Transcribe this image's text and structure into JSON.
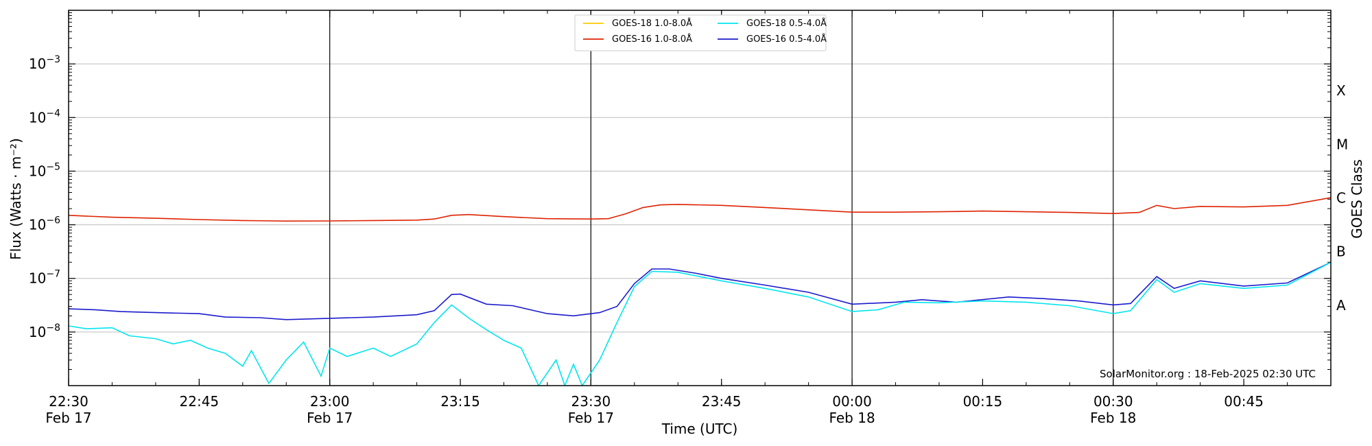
{
  "chart_data": {
    "type": "line",
    "x_unit": "UTC",
    "xlabel": "Time (UTC)",
    "ylabel": "Flux (Watts · m⁻²)",
    "ylabel_right": "GOES Class",
    "yscale": "log",
    "ylim": [
      1e-09,
      0.01
    ],
    "xlim": [
      "2025-02-17 22:30",
      "2025-02-18 00:55"
    ],
    "x_ticks": [
      {
        "time": "2025-02-17 22:30",
        "label1": "22:30",
        "label2": "Feb 17",
        "vline": false
      },
      {
        "time": "2025-02-17 22:45",
        "label1": "22:45",
        "label2": "",
        "vline": false
      },
      {
        "time": "2025-02-17 23:00",
        "label1": "23:00",
        "label2": "Feb 17",
        "vline": true
      },
      {
        "time": "2025-02-17 23:15",
        "label1": "23:15",
        "label2": "",
        "vline": false
      },
      {
        "time": "2025-02-17 23:30",
        "label1": "23:30",
        "label2": "Feb 17",
        "vline": true
      },
      {
        "time": "2025-02-17 23:45",
        "label1": "23:45",
        "label2": "",
        "vline": false
      },
      {
        "time": "2025-02-18 00:00",
        "label1": "00:00",
        "label2": "Feb 18",
        "vline": true
      },
      {
        "time": "2025-02-18 00:15",
        "label1": "00:15",
        "label2": "",
        "vline": false
      },
      {
        "time": "2025-02-18 00:30",
        "label1": "00:30",
        "label2": "Feb 18",
        "vline": true
      },
      {
        "time": "2025-02-18 00:45",
        "label1": "00:45",
        "label2": "",
        "vline": false
      }
    ],
    "y_ticks": [
      {
        "value": 1e-08,
        "base": "10",
        "exp": "−8"
      },
      {
        "value": 1e-07,
        "base": "10",
        "exp": "−7"
      },
      {
        "value": 1e-06,
        "base": "10",
        "exp": "−6"
      },
      {
        "value": 1e-05,
        "base": "10",
        "exp": "−5"
      },
      {
        "value": 0.0001,
        "base": "10",
        "exp": "−4"
      },
      {
        "value": 0.001,
        "base": "10",
        "exp": "−3"
      }
    ],
    "goes_classes": [
      {
        "label": "A",
        "value": 3.16e-08
      },
      {
        "label": "B",
        "value": 3.16e-07
      },
      {
        "label": "C",
        "value": 3.16e-06
      },
      {
        "label": "M",
        "value": 3.16e-05
      },
      {
        "label": "X",
        "value": 0.000316
      }
    ],
    "legend": {
      "placement": "top-center",
      "entries": [
        {
          "name": "GOES-18 1.0-8.0Å",
          "color": "#ffcc00"
        },
        {
          "name": "GOES-16 1.0-8.0Å",
          "color": "#dd2200"
        },
        {
          "name": "GOES-18 0.5-4.0Å",
          "color": "#00e5ee"
        },
        {
          "name": "GOES-16 0.5-4.0Å",
          "color": "#1a1acc"
        }
      ]
    },
    "credit": "SolarMonitor.org : 18-Feb-2025 02:30 UTC",
    "series": [
      {
        "name": "GOES-16 1.0-8.0Å",
        "color": "#dd2200",
        "points": [
          [
            "2025-02-17 22:30",
            1.5e-06
          ],
          [
            "2025-02-17 22:35",
            1.38e-06
          ],
          [
            "2025-02-17 22:40",
            1.32e-06
          ],
          [
            "2025-02-17 22:45",
            1.25e-06
          ],
          [
            "2025-02-17 22:50",
            1.2e-06
          ],
          [
            "2025-02-17 22:55",
            1.17e-06
          ],
          [
            "2025-02-17 23:00",
            1.18e-06
          ],
          [
            "2025-02-17 23:05",
            1.2e-06
          ],
          [
            "2025-02-17 23:10",
            1.22e-06
          ],
          [
            "2025-02-17 23:12",
            1.28e-06
          ],
          [
            "2025-02-17 23:14",
            1.5e-06
          ],
          [
            "2025-02-17 23:16",
            1.55e-06
          ],
          [
            "2025-02-17 23:20",
            1.42e-06
          ],
          [
            "2025-02-17 23:25",
            1.3e-06
          ],
          [
            "2025-02-17 23:30",
            1.28e-06
          ],
          [
            "2025-02-17 23:32",
            1.3e-06
          ],
          [
            "2025-02-17 23:34",
            1.6e-06
          ],
          [
            "2025-02-17 23:36",
            2.1e-06
          ],
          [
            "2025-02-17 23:38",
            2.35e-06
          ],
          [
            "2025-02-17 23:40",
            2.4e-06
          ],
          [
            "2025-02-17 23:45",
            2.3e-06
          ],
          [
            "2025-02-17 23:50",
            2.1e-06
          ],
          [
            "2025-02-17 23:55",
            1.9e-06
          ],
          [
            "2025-02-18 00:00",
            1.72e-06
          ],
          [
            "2025-02-18 00:05",
            1.72e-06
          ],
          [
            "2025-02-18 00:10",
            1.75e-06
          ],
          [
            "2025-02-18 00:15",
            1.8e-06
          ],
          [
            "2025-02-18 00:20",
            1.75e-06
          ],
          [
            "2025-02-18 00:25",
            1.7e-06
          ],
          [
            "2025-02-18 00:30",
            1.62e-06
          ],
          [
            "2025-02-18 00:33",
            1.7e-06
          ],
          [
            "2025-02-18 00:35",
            2.3e-06
          ],
          [
            "2025-02-18 00:37",
            2e-06
          ],
          [
            "2025-02-18 00:40",
            2.2e-06
          ],
          [
            "2025-02-18 00:45",
            2.15e-06
          ],
          [
            "2025-02-18 00:50",
            2.3e-06
          ],
          [
            "2025-02-18 00:55",
            3.2e-06
          ]
        ]
      },
      {
        "name": "GOES-16 0.5-4.0Å",
        "color": "#1a1acc",
        "points": [
          [
            "2025-02-17 22:30",
            2.7e-08
          ],
          [
            "2025-02-17 22:33",
            2.6e-08
          ],
          [
            "2025-02-17 22:36",
            2.4e-08
          ],
          [
            "2025-02-17 22:40",
            2.3e-08
          ],
          [
            "2025-02-17 22:45",
            2.2e-08
          ],
          [
            "2025-02-17 22:48",
            1.9e-08
          ],
          [
            "2025-02-17 22:52",
            1.85e-08
          ],
          [
            "2025-02-17 22:55",
            1.7e-08
          ],
          [
            "2025-02-17 23:00",
            1.8e-08
          ],
          [
            "2025-02-17 23:05",
            1.9e-08
          ],
          [
            "2025-02-17 23:10",
            2.1e-08
          ],
          [
            "2025-02-17 23:12",
            2.5e-08
          ],
          [
            "2025-02-17 23:14",
            5e-08
          ],
          [
            "2025-02-17 23:15",
            5.1e-08
          ],
          [
            "2025-02-17 23:18",
            3.3e-08
          ],
          [
            "2025-02-17 23:21",
            3.1e-08
          ],
          [
            "2025-02-17 23:25",
            2.2e-08
          ],
          [
            "2025-02-17 23:28",
            2e-08
          ],
          [
            "2025-02-17 23:31",
            2.3e-08
          ],
          [
            "2025-02-17 23:33",
            3e-08
          ],
          [
            "2025-02-17 23:35",
            8e-08
          ],
          [
            "2025-02-17 23:37",
            1.5e-07
          ],
          [
            "2025-02-17 23:39",
            1.5e-07
          ],
          [
            "2025-02-17 23:42",
            1.25e-07
          ],
          [
            "2025-02-17 23:45",
            1e-07
          ],
          [
            "2025-02-17 23:50",
            7.5e-08
          ],
          [
            "2025-02-17 23:55",
            5.5e-08
          ],
          [
            "2025-02-18 00:00",
            3.3e-08
          ],
          [
            "2025-02-18 00:05",
            3.6e-08
          ],
          [
            "2025-02-18 00:08",
            4e-08
          ],
          [
            "2025-02-18 00:12",
            3.6e-08
          ],
          [
            "2025-02-18 00:18",
            4.5e-08
          ],
          [
            "2025-02-18 00:22",
            4.2e-08
          ],
          [
            "2025-02-18 00:26",
            3.8e-08
          ],
          [
            "2025-02-18 00:30",
            3.2e-08
          ],
          [
            "2025-02-18 00:32",
            3.4e-08
          ],
          [
            "2025-02-18 00:35",
            1.08e-07
          ],
          [
            "2025-02-18 00:37",
            6.5e-08
          ],
          [
            "2025-02-18 00:40",
            9e-08
          ],
          [
            "2025-02-18 00:45",
            7.2e-08
          ],
          [
            "2025-02-18 00:50",
            8.2e-08
          ],
          [
            "2025-02-18 00:55",
            2e-07
          ]
        ]
      },
      {
        "name": "GOES-18 0.5-4.0Å",
        "color": "#00e5ee",
        "points": [
          [
            "2025-02-17 22:30",
            1.3e-08
          ],
          [
            "2025-02-17 22:32",
            1.15e-08
          ],
          [
            "2025-02-17 22:35",
            1.2e-08
          ],
          [
            "2025-02-17 22:37",
            8.5e-09
          ],
          [
            "2025-02-17 22:40",
            7.5e-09
          ],
          [
            "2025-02-17 22:42",
            6e-09
          ],
          [
            "2025-02-17 22:44",
            7e-09
          ],
          [
            "2025-02-17 22:46",
            5e-09
          ],
          [
            "2025-02-17 22:48",
            4e-09
          ],
          [
            "2025-02-17 22:50",
            2.3e-09
          ],
          [
            "2025-02-17 22:51",
            4.5e-09
          ],
          [
            "2025-02-17 22:53",
            1.1e-09
          ],
          [
            "2025-02-17 22:55",
            3e-09
          ],
          [
            "2025-02-17 22:57",
            6.5e-09
          ],
          [
            "2025-02-17 22:59",
            1.5e-09
          ],
          [
            "2025-02-17 23:00",
            5e-09
          ],
          [
            "2025-02-17 23:02",
            3.5e-09
          ],
          [
            "2025-02-17 23:05",
            5e-09
          ],
          [
            "2025-02-17 23:07",
            3.5e-09
          ],
          [
            "2025-02-17 23:10",
            6e-09
          ],
          [
            "2025-02-17 23:12",
            1.5e-08
          ],
          [
            "2025-02-17 23:14",
            3.2e-08
          ],
          [
            "2025-02-17 23:16",
            1.8e-08
          ],
          [
            "2025-02-17 23:18",
            1.1e-08
          ],
          [
            "2025-02-17 23:20",
            7e-09
          ],
          [
            "2025-02-17 23:22",
            5e-09
          ],
          [
            "2025-02-17 23:24",
            1e-09
          ],
          [
            "2025-02-17 23:26",
            3e-09
          ],
          [
            "2025-02-17 23:27",
            1e-09
          ],
          [
            "2025-02-17 23:28",
            2.5e-09
          ],
          [
            "2025-02-17 23:29",
            1e-09
          ],
          [
            "2025-02-17 23:31",
            3e-09
          ],
          [
            "2025-02-17 23:33",
            1.5e-08
          ],
          [
            "2025-02-17 23:35",
            7e-08
          ],
          [
            "2025-02-17 23:37",
            1.35e-07
          ],
          [
            "2025-02-17 23:40",
            1.3e-07
          ],
          [
            "2025-02-17 23:45",
            9e-08
          ],
          [
            "2025-02-17 23:50",
            6.5e-08
          ],
          [
            "2025-02-17 23:55",
            4.5e-08
          ],
          [
            "2025-02-18 00:00",
            2.4e-08
          ],
          [
            "2025-02-18 00:03",
            2.6e-08
          ],
          [
            "2025-02-18 00:06",
            3.6e-08
          ],
          [
            "2025-02-18 00:10",
            3.5e-08
          ],
          [
            "2025-02-18 00:15",
            3.8e-08
          ],
          [
            "2025-02-18 00:20",
            3.6e-08
          ],
          [
            "2025-02-18 00:25",
            3.1e-08
          ],
          [
            "2025-02-18 00:30",
            2.2e-08
          ],
          [
            "2025-02-18 00:32",
            2.5e-08
          ],
          [
            "2025-02-18 00:35",
            9.5e-08
          ],
          [
            "2025-02-18 00:37",
            5.5e-08
          ],
          [
            "2025-02-18 00:40",
            8e-08
          ],
          [
            "2025-02-18 00:45",
            6.5e-08
          ],
          [
            "2025-02-18 00:50",
            7.5e-08
          ],
          [
            "2025-02-18 00:55",
            2e-07
          ]
        ]
      }
    ]
  }
}
